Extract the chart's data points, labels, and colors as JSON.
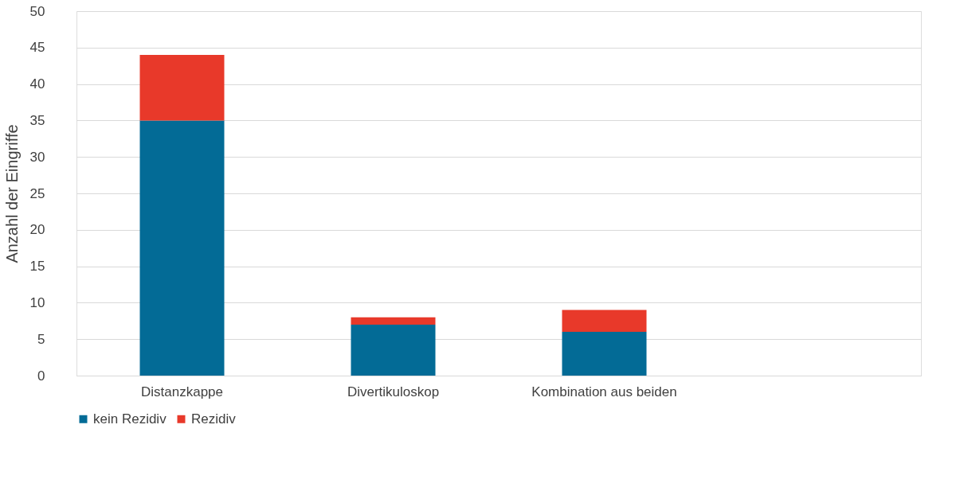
{
  "chart_data": {
    "type": "bar",
    "stacked": true,
    "ylabel": "Anzahl der Eingriffe",
    "categories": [
      "Distanzkappe",
      "Divertikuloskop",
      "Kombination aus beiden",
      null
    ],
    "series": [
      {
        "name": "kein Rezidiv",
        "color": "#036b96",
        "values": [
          35,
          7,
          6,
          null
        ]
      },
      {
        "name": "Rezidiv",
        "color": "#e8392a",
        "values": [
          9,
          1,
          3,
          null
        ]
      }
    ],
    "ylim": [
      0,
      50
    ],
    "yticks": [
      0,
      5,
      10,
      15,
      20,
      25,
      30,
      35,
      40,
      45,
      50
    ],
    "grid": "y",
    "legend": "bottom"
  }
}
